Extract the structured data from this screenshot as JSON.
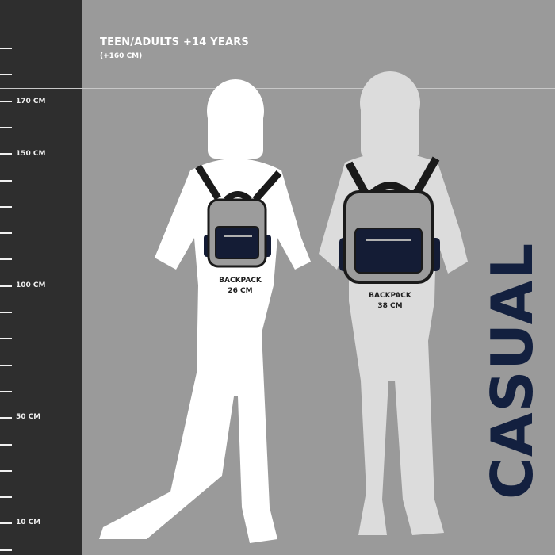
{
  "header": {
    "title": "TEEN/ADULTS +14 YEARS",
    "subtitle": "(+160 CM)"
  },
  "ruler": {
    "labels": [
      {
        "value": 170,
        "text": "170 CM"
      },
      {
        "value": 150,
        "text": "150 CM"
      },
      {
        "value": 100,
        "text": "100 CM"
      },
      {
        "value": 50,
        "text": "50 CM"
      },
      {
        "value": 10,
        "text": "10 CM"
      }
    ]
  },
  "figures": [
    {
      "backpack_label": "BACKPACK",
      "backpack_size": "26 CM",
      "silhouette_color": "#ffffff"
    },
    {
      "backpack_label": "BACKPACK",
      "backpack_size": "38 CM",
      "silhouette_color": "#dcdcdc"
    }
  ],
  "brand": {
    "label": "CASUAL",
    "color": "#13203f"
  },
  "colors": {
    "ruler_bg": "#2e2e2e",
    "background": "#9a9a9a",
    "backpack_body": "#9c9c9c",
    "backpack_pocket": "#141c35"
  }
}
